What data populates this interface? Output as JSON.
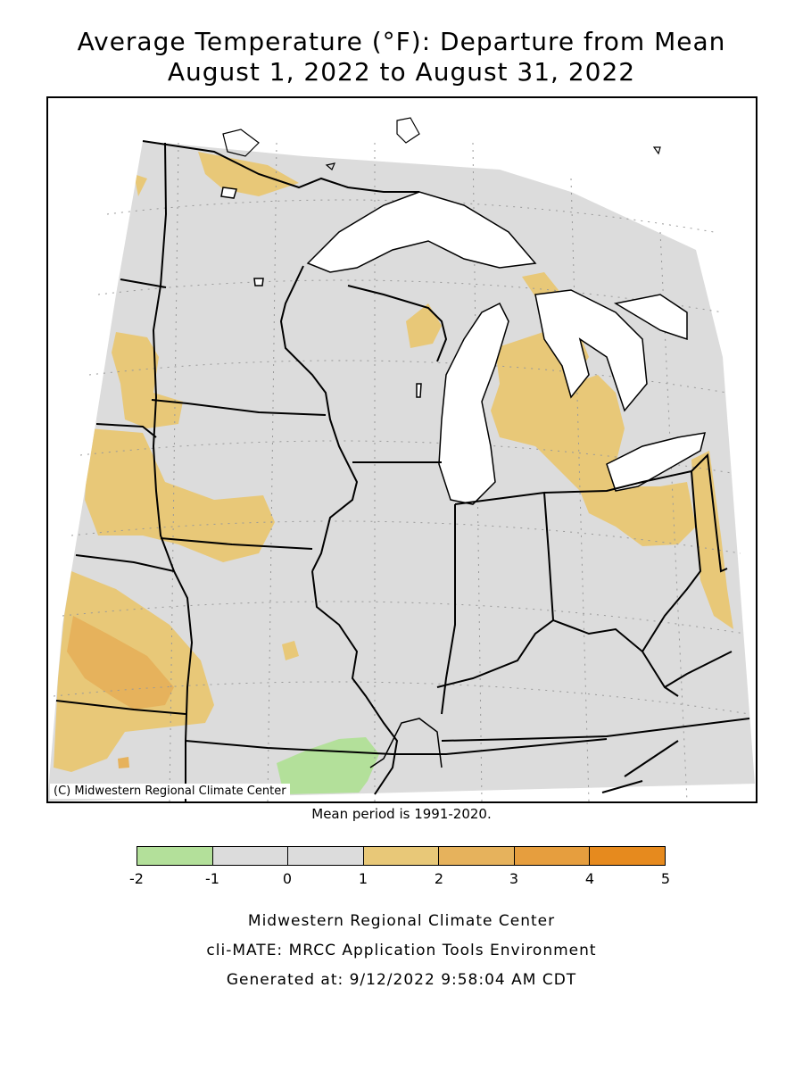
{
  "title_line1": "Average Temperature (°F): Departure from Mean",
  "title_line2": "August 1, 2022 to August 31, 2022",
  "copyright": "(C) Midwestern Regional Climate Center",
  "mean_period": "Mean period is 1991-2020.",
  "legend": {
    "ticks": [
      "-2",
      "-1",
      "0",
      "1",
      "2",
      "3",
      "4",
      "5"
    ],
    "colors": [
      "#b3e09a",
      "#dcdcdc",
      "#dcdcdc",
      "#e8c878",
      "#e6b25c",
      "#e69e3e",
      "#e68a1e"
    ]
  },
  "colors": {
    "land_neutral": "#dcdcdc",
    "warm_1_2": "#e8c878",
    "warm_2_3": "#e6b25c",
    "cool_-2_-1": "#b3e09a",
    "water": "#ffffff"
  },
  "footer": {
    "line1": "Midwestern Regional Climate Center",
    "line2": "cli-MATE: MRCC Application Tools Environment",
    "line3": "Generated at: 9/12/2022 9:58:04 AM CDT"
  }
}
